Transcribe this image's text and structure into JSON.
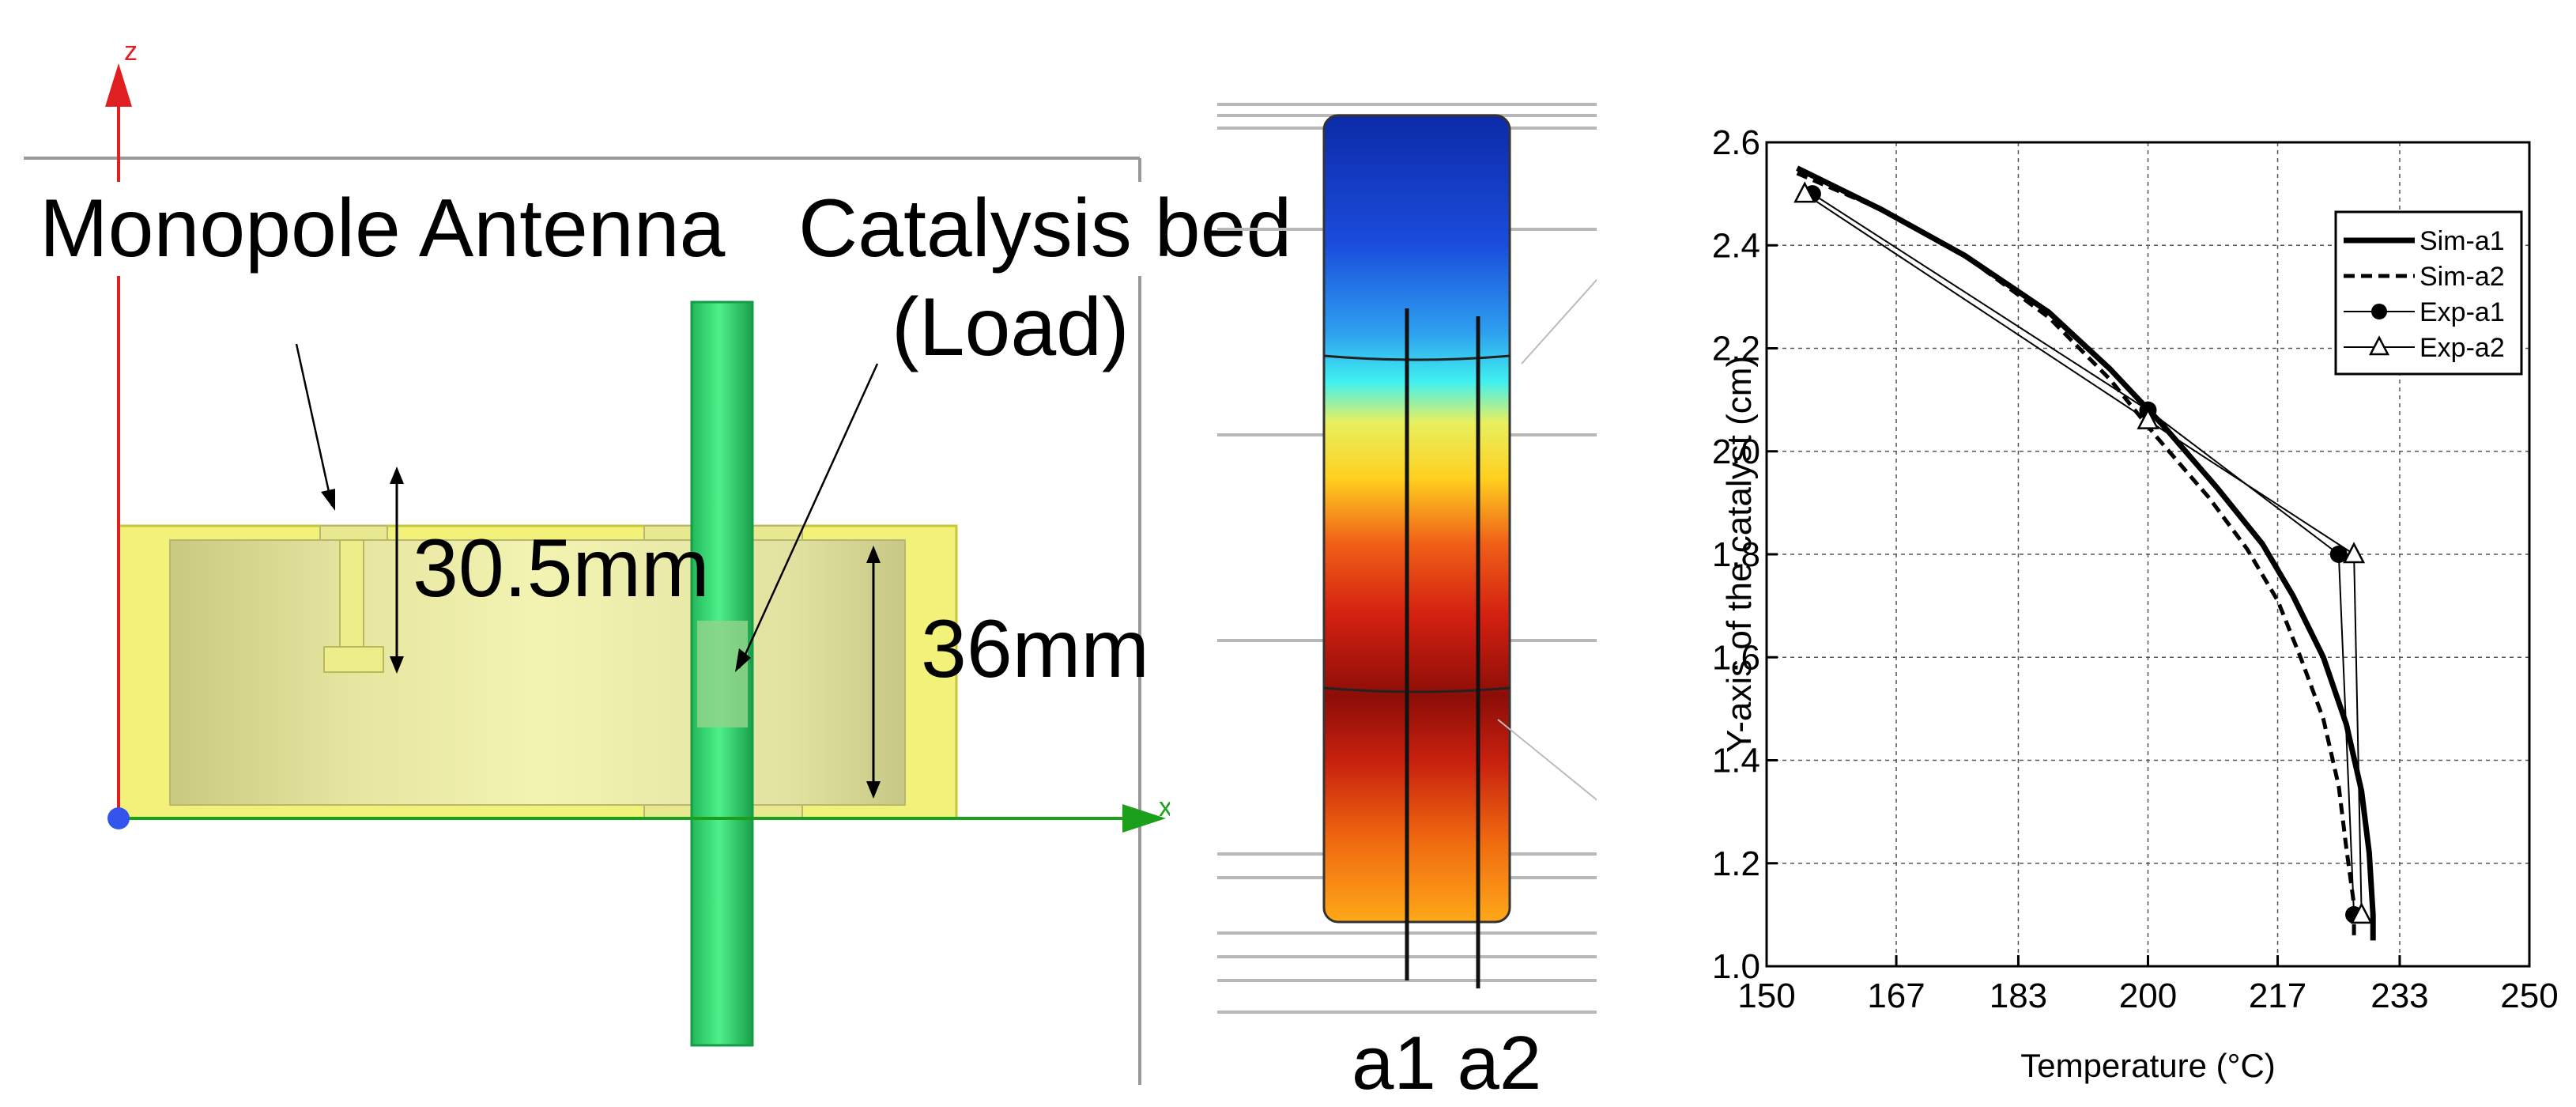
{
  "cad_view": {
    "axis_z_label": "z",
    "axis_x_label": "x",
    "antenna_label": "Monopole Antenna",
    "bed_label_line1": "Catalysis bed",
    "bed_label_line2": "(Load)",
    "antenna_height_label": "30.5mm",
    "cavity_height_label": "36mm"
  },
  "thermal_map": {
    "probe_labels": "a1 a2"
  },
  "chart_data": {
    "type": "line",
    "xlabel": "Temperature (°C)",
    "ylabel": "Y-axis of the catalyst (cm)",
    "xlim": [
      150,
      250
    ],
    "ylim": [
      1.0,
      2.6
    ],
    "x_ticks": [
      "150",
      "167",
      "183",
      "200",
      "217",
      "233",
      "250"
    ],
    "x_tick_values": [
      150,
      167,
      183,
      200,
      217,
      233,
      250
    ],
    "y_ticks": [
      "1.0",
      "1.2",
      "1.4",
      "1.6",
      "1.8",
      "2.0",
      "2.2",
      "2.4",
      "2.6"
    ],
    "y_tick_values": [
      1.0,
      1.2,
      1.4,
      1.6,
      1.8,
      2.0,
      2.2,
      2.4,
      2.6
    ],
    "grid": true,
    "legend_position": "top-right",
    "series": [
      {
        "name": "Sim-a1",
        "style": "solid-thick",
        "points": [
          [
            154,
            2.55
          ],
          [
            165,
            2.47
          ],
          [
            176,
            2.38
          ],
          [
            187,
            2.27
          ],
          [
            195,
            2.16
          ],
          [
            202,
            2.05
          ],
          [
            209,
            1.93
          ],
          [
            215,
            1.82
          ],
          [
            219,
            1.72
          ],
          [
            223,
            1.6
          ],
          [
            226,
            1.47
          ],
          [
            228,
            1.34
          ],
          [
            229,
            1.22
          ],
          [
            229.5,
            1.1
          ],
          [
            229.5,
            1.05
          ]
        ]
      },
      {
        "name": "Sim-a2",
        "style": "dashed",
        "points": [
          [
            154,
            2.54
          ],
          [
            165,
            2.47
          ],
          [
            176,
            2.38
          ],
          [
            187,
            2.26
          ],
          [
            195,
            2.14
          ],
          [
            201,
            2.03
          ],
          [
            208,
            1.91
          ],
          [
            213,
            1.81
          ],
          [
            217,
            1.71
          ],
          [
            220,
            1.6
          ],
          [
            223,
            1.48
          ],
          [
            225,
            1.35
          ],
          [
            226,
            1.23
          ],
          [
            227,
            1.12
          ],
          [
            227,
            1.05
          ]
        ]
      },
      {
        "name": "Exp-a1",
        "style": "solid-thin-circle",
        "points": [
          [
            156,
            2.5
          ],
          [
            200,
            2.08
          ],
          [
            225,
            1.8
          ],
          [
            227,
            1.1
          ]
        ]
      },
      {
        "name": "Exp-a2",
        "style": "solid-thin-triangle",
        "points": [
          [
            155,
            2.5
          ],
          [
            200,
            2.06
          ],
          [
            227,
            1.8
          ],
          [
            228,
            1.1
          ]
        ]
      }
    ]
  }
}
